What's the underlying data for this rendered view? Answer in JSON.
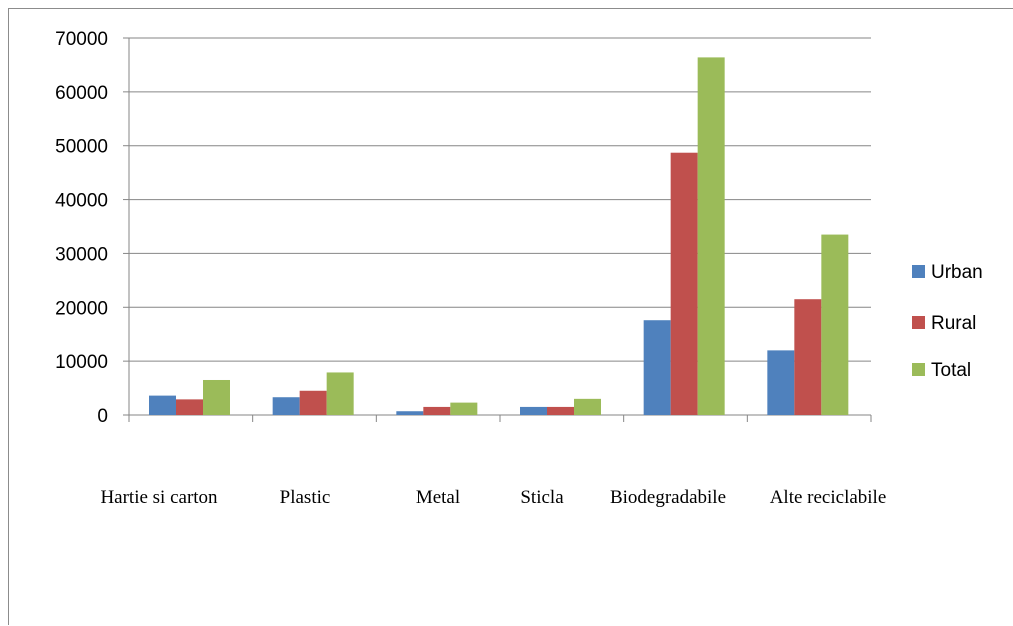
{
  "chart_data": {
    "type": "bar",
    "title": "",
    "xlabel": "",
    "ylabel": "",
    "categories": [
      "Hartie si carton",
      "Plastic",
      "Metal",
      "Sticla",
      "Biodegradabile",
      "Alte reciclabile"
    ],
    "series": [
      {
        "name": "Urban",
        "color": "#4f81bd",
        "values": [
          3600,
          3300,
          700,
          1500,
          17600,
          12000
        ]
      },
      {
        "name": "Rural",
        "color": "#c0504d",
        "values": [
          2900,
          4500,
          1500,
          1500,
          48700,
          21500
        ]
      },
      {
        "name": "Total",
        "color": "#9bbb59",
        "values": [
          6500,
          7900,
          2300,
          3000,
          66400,
          33500
        ]
      }
    ],
    "ylim": [
      0,
      70000
    ],
    "yticks": [
      0,
      10000,
      20000,
      30000,
      40000,
      50000,
      60000,
      70000
    ],
    "grid": true,
    "legend": "right"
  }
}
